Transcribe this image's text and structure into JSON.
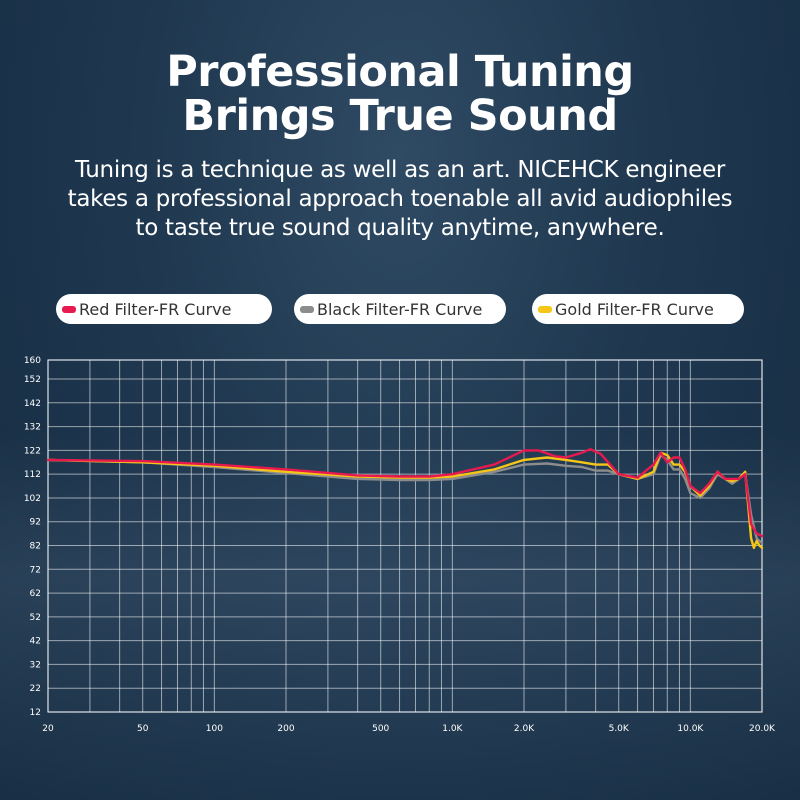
{
  "headline": {
    "line1": "Professional Tuning",
    "line2": "Brings True Sound"
  },
  "description": {
    "line1": "Tuning is a technique as well as an art. NICEHCK engineer",
    "line2": "takes a professional approach toenable all avid audiophiles",
    "line3": "to taste true sound quality anytime, anywhere."
  },
  "legend": [
    {
      "label": "Red Filter-FR Curve",
      "color": "#e8194e"
    },
    {
      "label": "Black Filter-FR Curve",
      "color": "#8c8c8c"
    },
    {
      "label": "Gold Filter-FR Curve",
      "color": "#f5c518"
    }
  ],
  "chart_data": {
    "type": "line",
    "xscale": "log",
    "xlim": [
      20,
      20000
    ],
    "ylim": [
      12,
      160
    ],
    "grid": true,
    "x_ticks": [
      {
        "value": 20,
        "label": "20"
      },
      {
        "value": 50,
        "label": "50"
      },
      {
        "value": 100,
        "label": "100"
      },
      {
        "value": 200,
        "label": "200"
      },
      {
        "value": 500,
        "label": "500"
      },
      {
        "value": 1000,
        "label": "1.0K"
      },
      {
        "value": 2000,
        "label": "2.0K"
      },
      {
        "value": 5000,
        "label": "5.0K"
      },
      {
        "value": 10000,
        "label": "10.0K"
      },
      {
        "value": 20000,
        "label": "20.0K"
      }
    ],
    "y_ticks": [
      {
        "value": 12,
        "label": "12"
      },
      {
        "value": 22,
        "label": "22"
      },
      {
        "value": 32,
        "label": "32"
      },
      {
        "value": 42,
        "label": "42"
      },
      {
        "value": 52,
        "label": "52"
      },
      {
        "value": 62,
        "label": "62"
      },
      {
        "value": 72,
        "label": "72"
      },
      {
        "value": 82,
        "label": "82"
      },
      {
        "value": 92,
        "label": "92"
      },
      {
        "value": 102,
        "label": "102"
      },
      {
        "value": 112,
        "label": "112"
      },
      {
        "value": 122,
        "label": "122"
      },
      {
        "value": 132,
        "label": "132"
      },
      {
        "value": 142,
        "label": "142"
      },
      {
        "value": 152,
        "label": "152"
      },
      {
        "value": 160,
        "label": "160"
      }
    ],
    "series": [
      {
        "name": "Black Filter-FR Curve",
        "color": "#8c8c8c",
        "x": [
          20,
          50,
          100,
          200,
          400,
          600,
          800,
          1000,
          1500,
          2000,
          2500,
          3000,
          3500,
          4000,
          4500,
          5000,
          6000,
          7000,
          7500,
          8000,
          8500,
          9000,
          9500,
          10000,
          11000,
          12000,
          13000,
          14000,
          15000,
          16000,
          17000,
          18000,
          19000,
          20000
        ],
        "y": [
          118,
          117,
          115,
          112.5,
          110,
          109.5,
          109.5,
          110,
          113,
          116,
          116.5,
          115.5,
          115,
          113.5,
          113.5,
          112,
          110,
          112,
          120,
          118,
          114,
          114,
          110,
          104,
          102,
          106,
          112,
          110,
          108,
          110,
          112,
          95,
          85,
          83
        ]
      },
      {
        "name": "Gold Filter-FR Curve",
        "color": "#f5c518",
        "x": [
          20,
          50,
          100,
          200,
          400,
          600,
          800,
          1000,
          1500,
          2000,
          2500,
          3000,
          3500,
          4000,
          4500,
          5000,
          6000,
          7000,
          7500,
          8000,
          8500,
          9000,
          9500,
          10000,
          11000,
          12000,
          13000,
          14000,
          15000,
          16000,
          17000,
          18000,
          18500,
          19000,
          19500,
          20000
        ],
        "y": [
          118,
          117,
          115.5,
          113,
          111,
          110.5,
          110.5,
          111,
          114,
          118,
          119,
          118,
          117,
          116,
          116,
          112,
          110,
          113,
          121,
          120,
          116,
          116,
          113,
          107,
          103,
          107,
          113,
          110,
          109,
          110,
          113,
          85,
          81,
          84,
          82,
          81
        ]
      },
      {
        "name": "Red Filter-FR Curve",
        "color": "#e8194e",
        "x": [
          20,
          50,
          100,
          200,
          400,
          600,
          800,
          1000,
          1500,
          2000,
          2300,
          2700,
          3000,
          3500,
          3800,
          4200,
          4600,
          5000,
          6000,
          7000,
          7500,
          8000,
          8500,
          9000,
          9500,
          10000,
          11000,
          12000,
          13000,
          14000,
          15000,
          16000,
          17000,
          18000,
          19000,
          20000
        ],
        "y": [
          118,
          117.5,
          116,
          114,
          111.5,
          111,
          111,
          112,
          116,
          122,
          122,
          119.5,
          119,
          121,
          122.5,
          120.5,
          116,
          112,
          110.5,
          116,
          121,
          117,
          119,
          119,
          114,
          107,
          104,
          108,
          113,
          110,
          110,
          110,
          112,
          91,
          87,
          86
        ]
      }
    ]
  }
}
